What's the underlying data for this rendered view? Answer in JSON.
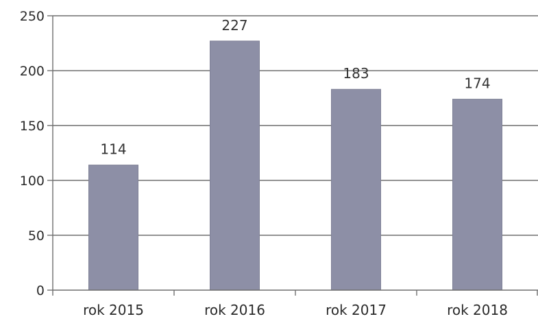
{
  "chart_data": {
    "type": "bar",
    "categories": [
      "rok 2015",
      "rok 2016",
      "rok 2017",
      "rok 2018"
    ],
    "values": [
      114,
      227,
      183,
      174
    ],
    "data_labels": [
      "114",
      "227",
      "183",
      "174"
    ],
    "y_ticks": [
      "0",
      "50",
      "100",
      "150",
      "200",
      "250"
    ],
    "ylim": [
      0,
      250
    ],
    "grid": true,
    "bar_color": "#8d8fa6"
  }
}
